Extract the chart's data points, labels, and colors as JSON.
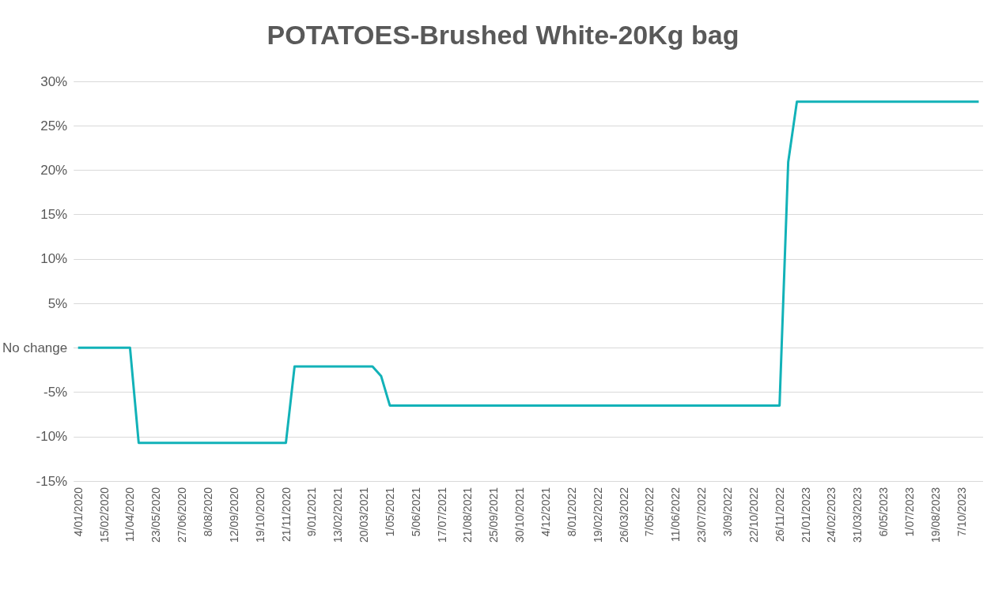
{
  "chart_data": {
    "type": "line",
    "title": "POTATOES-Brushed White-20Kg bag",
    "categories": [
      "4/01/2020",
      null,
      null,
      "15/02/2020",
      null,
      null,
      "11/04/2020",
      null,
      null,
      "23/05/2020",
      null,
      null,
      "27/06/2020",
      null,
      null,
      "8/08/2020",
      null,
      null,
      "12/09/2020",
      null,
      null,
      "19/10/2020",
      null,
      null,
      "21/11/2020",
      null,
      null,
      "9/01/2021",
      null,
      null,
      "13/02/2021",
      null,
      null,
      "20/03/2021",
      null,
      null,
      "1/05/2021",
      null,
      null,
      "5/06/2021",
      null,
      null,
      "17/07/2021",
      null,
      null,
      "21/08/2021",
      null,
      null,
      "25/09/2021",
      null,
      null,
      "30/10/2021",
      null,
      null,
      "4/12/2021",
      null,
      null,
      "8/01/2022",
      null,
      null,
      "19/02/2022",
      null,
      null,
      "26/03/2022",
      null,
      null,
      "7/05/2022",
      null,
      null,
      "11/06/2022",
      null,
      null,
      "23/07/2022",
      null,
      null,
      "3/09/2022",
      null,
      null,
      "22/10/2022",
      null,
      null,
      "26/11/2022",
      null,
      null,
      "21/01/2023",
      null,
      null,
      "24/02/2023",
      null,
      null,
      "31/03/2023",
      null,
      null,
      "6/05/2023",
      null,
      null,
      "1/07/2023",
      null,
      null,
      "19/08/2023",
      null,
      null,
      "7/10/2023",
      null,
      null
    ],
    "series": [
      {
        "color": "#12b2b8",
        "values": [
          0,
          0,
          0,
          0,
          0,
          0,
          0,
          -10.7,
          -10.7,
          -10.7,
          -10.7,
          -10.7,
          -10.7,
          -10.7,
          -10.7,
          -10.7,
          -10.7,
          -10.7,
          -10.7,
          -10.7,
          -10.7,
          -10.7,
          -10.7,
          -10.7,
          -10.7,
          -2.1,
          -2.1,
          -2.1,
          -2.1,
          -2.1,
          -2.1,
          -2.1,
          -2.1,
          -2.1,
          -2.1,
          -3.2,
          -6.5,
          -6.5,
          -6.5,
          -6.5,
          -6.5,
          -6.5,
          -6.5,
          -6.5,
          -6.5,
          -6.5,
          -6.5,
          -6.5,
          -6.5,
          -6.5,
          -6.5,
          -6.5,
          -6.5,
          -6.5,
          -6.5,
          -6.5,
          -6.5,
          -6.5,
          -6.5,
          -6.5,
          -6.5,
          -6.5,
          -6.5,
          -6.5,
          -6.5,
          -6.5,
          -6.5,
          -6.5,
          -6.5,
          -6.5,
          -6.5,
          -6.5,
          -6.5,
          -6.5,
          -6.5,
          -6.5,
          -6.5,
          -6.5,
          -6.5,
          -6.5,
          -6.5,
          -6.5,
          20.9,
          27.7,
          27.7,
          27.7,
          27.7,
          27.7,
          27.7,
          27.7,
          27.7,
          27.7,
          27.7,
          27.7,
          27.7,
          27.7,
          27.7,
          27.7,
          27.7,
          27.7,
          27.7,
          27.7,
          27.7,
          27.7,
          27.7
        ]
      }
    ],
    "ylim": [
      -15,
      30
    ],
    "yticks": [
      {
        "value": -15,
        "label": "-15%"
      },
      {
        "value": -10,
        "label": "-10%"
      },
      {
        "value": -5,
        "label": "-5%"
      },
      {
        "value": 0,
        "label": "No change"
      },
      {
        "value": 5,
        "label": "5%"
      },
      {
        "value": 10,
        "label": "10%"
      },
      {
        "value": 15,
        "label": "15%"
      },
      {
        "value": 20,
        "label": "20%"
      },
      {
        "value": 25,
        "label": "25%"
      },
      {
        "value": 30,
        "label": "30%"
      }
    ],
    "grid": "y",
    "marker": "none",
    "line_style": "solid"
  }
}
